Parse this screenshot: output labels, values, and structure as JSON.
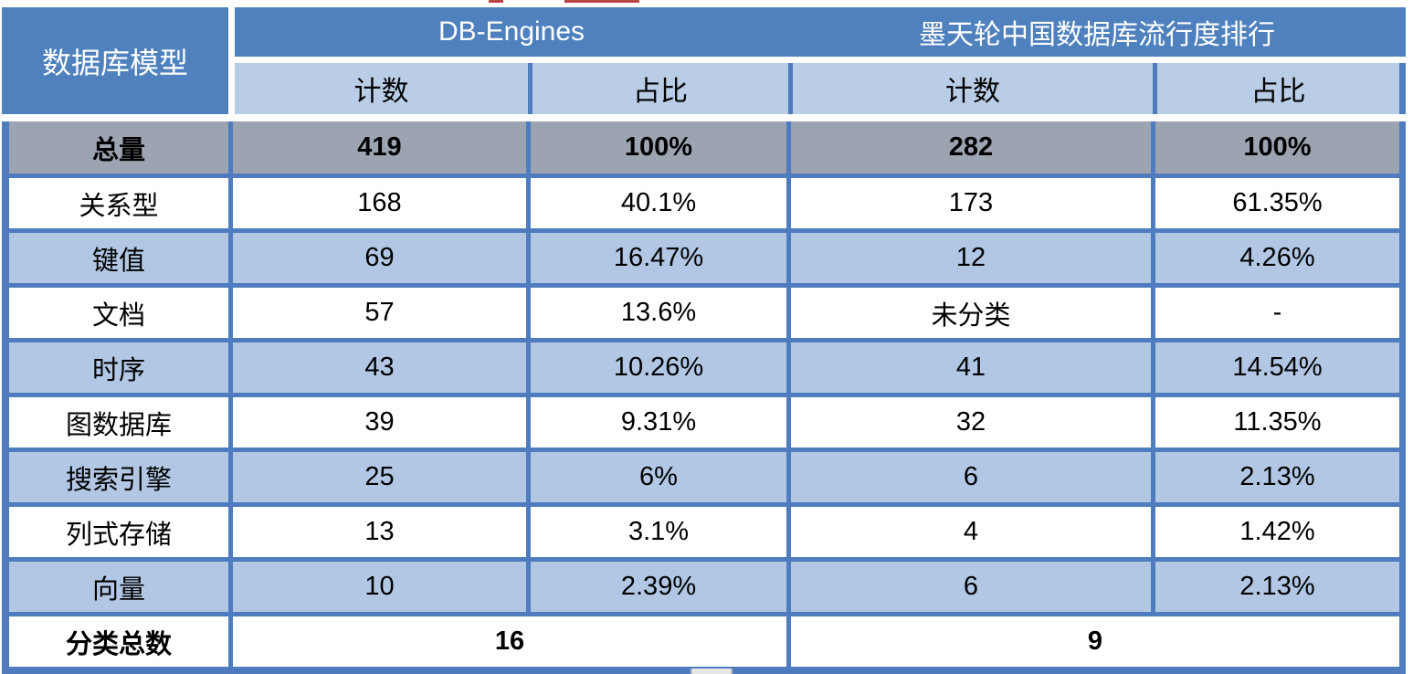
{
  "colors": {
    "header-blue": "#4e81bd",
    "subheader-blue": "#b9cde6",
    "row-blue": "#b1c7e4",
    "total-gray": "#9ca4b2",
    "border-blue": "#4e7cbe",
    "artifact-red": "#bb4545",
    "artifact-gray": "#e9e6e6"
  },
  "table": {
    "corner_header": "数据库模型",
    "group_headers": [
      {
        "label": "DB-Engines"
      },
      {
        "label": "墨天轮中国数据库流行度排行"
      }
    ],
    "sub_headers": [
      "计数",
      "占比",
      "计数",
      "占比"
    ],
    "total_row": {
      "label": "总量",
      "values": [
        "419",
        "100%",
        "282",
        "100%"
      ]
    },
    "rows": [
      {
        "label": "关系型",
        "values": [
          "168",
          "40.1%",
          "173",
          "61.35%"
        ]
      },
      {
        "label": "键值",
        "values": [
          "69",
          "16.47%",
          "12",
          "4.26%"
        ]
      },
      {
        "label": "文档",
        "values": [
          "57",
          "13.6%",
          "未分类",
          "-"
        ]
      },
      {
        "label": "时序",
        "values": [
          "43",
          "10.26%",
          "41",
          "14.54%"
        ]
      },
      {
        "label": "图数据库",
        "values": [
          "39",
          "9.31%",
          "32",
          "11.35%"
        ]
      },
      {
        "label": "搜索引擎",
        "values": [
          "25",
          "6%",
          "6",
          "2.13%"
        ]
      },
      {
        "label": "列式存储",
        "values": [
          "13",
          "3.1%",
          "4",
          "1.42%"
        ]
      },
      {
        "label": "向量",
        "values": [
          "10",
          "2.39%",
          "6",
          "2.13%"
        ]
      }
    ],
    "footer_row": {
      "label": "分类总数",
      "values": [
        "16",
        "9"
      ]
    }
  },
  "chart_data": {
    "type": "table",
    "columns": [
      "数据库模型",
      "DB-Engines 计数",
      "DB-Engines 占比",
      "墨天轮中国数据库流行度排行 计数",
      "墨天轮中国数据库流行度排行 占比"
    ],
    "rows": [
      [
        "总量",
        "419",
        "100%",
        "282",
        "100%"
      ],
      [
        "关系型",
        "168",
        "40.1%",
        "173",
        "61.35%"
      ],
      [
        "键值",
        "69",
        "16.47%",
        "12",
        "4.26%"
      ],
      [
        "文档",
        "57",
        "13.6%",
        "未分类",
        "-"
      ],
      [
        "时序",
        "43",
        "10.26%",
        "41",
        "14.54%"
      ],
      [
        "图数据库",
        "39",
        "9.31%",
        "32",
        "11.35%"
      ],
      [
        "搜索引擎",
        "25",
        "6%",
        "6",
        "2.13%"
      ],
      [
        "列式存储",
        "13",
        "3.1%",
        "4",
        "1.42%"
      ],
      [
        "向量",
        "10",
        "2.39%",
        "6",
        "2.13%"
      ],
      [
        "分类总数",
        "16",
        "",
        "9",
        ""
      ]
    ]
  }
}
